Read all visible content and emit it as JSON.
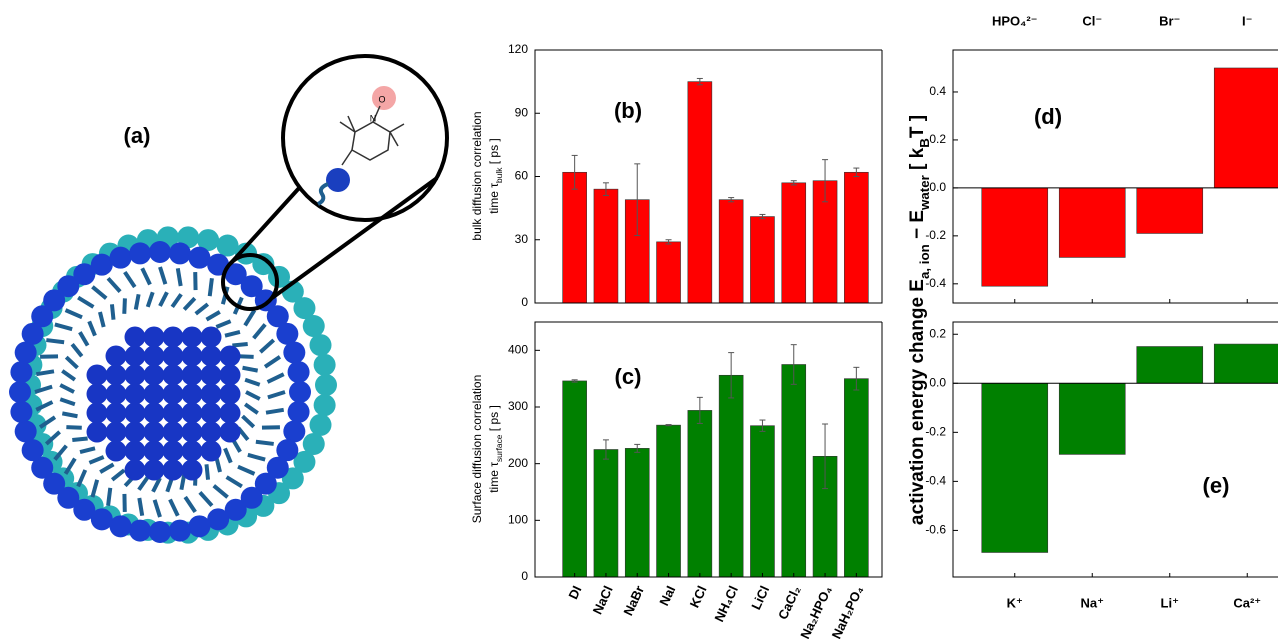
{
  "illustration": {
    "label": "(a)",
    "atoms": [
      "N",
      "O"
    ]
  },
  "chart_data": [
    {
      "type": "bar",
      "panel": "(b)",
      "y_label": [
        [
          "bulk diffusion correlation"
        ],
        [
          "time τ",
          "bulk",
          " [ ps ]"
        ]
      ],
      "values": [
        62,
        54,
        49,
        29,
        105,
        49,
        41,
        57,
        58,
        62
      ],
      "errors": [
        8,
        3,
        17,
        1,
        1.5,
        1,
        1,
        1,
        10,
        2
      ],
      "color": "#ff0000",
      "ylim": [
        0,
        120
      ],
      "yticks": [
        0,
        30,
        60,
        90,
        120
      ]
    },
    {
      "type": "bar",
      "panel": "(c)",
      "y_label": [
        [
          "Surface diffusion correlation"
        ],
        [
          "time τ",
          "surface",
          " [ ps ]"
        ]
      ],
      "categories": [
        "DI",
        "NaCl",
        "NaBr",
        "NaI",
        "KCl",
        "NH₄Cl",
        "LiCl",
        "CaCl₂",
        "Na₂HPO₄",
        "NaH₂PO₄"
      ],
      "values": [
        346,
        225,
        227,
        268,
        294,
        356,
        267,
        375,
        213,
        350
      ],
      "errors": [
        2,
        17,
        7,
        1,
        23,
        40,
        10,
        35,
        57,
        20
      ],
      "color": "#008000",
      "ylim": [
        0,
        450
      ],
      "yticks": [
        0,
        100,
        200,
        300,
        400
      ]
    },
    {
      "type": "bar",
      "panel": "(d)",
      "categories": [
        "HPO₄²⁻",
        "Cl⁻",
        "Br⁻",
        "I⁻"
      ],
      "values": [
        -0.41,
        -0.29,
        -0.19,
        0.5
      ],
      "color": "#ff0000",
      "ylim": [
        -0.48,
        0.575
      ],
      "yticks": [
        -0.4,
        -0.2,
        {
          "value": 0,
          "label": "0.0"
        },
        0.2,
        0.4
      ]
    },
    {
      "type": "bar",
      "panel": "(e)",
      "categories": [
        "K⁺",
        "Na⁺",
        "Li⁺",
        "Ca²⁺"
      ],
      "values": [
        -0.69,
        -0.29,
        0.15,
        0.16
      ],
      "color": "#008000",
      "ylim": [
        -0.79,
        0.25
      ],
      "yticks": [
        -0.6,
        -0.4,
        -0.2,
        {
          "value": 0,
          "label": "0.0"
        },
        0.2
      ]
    }
  ],
  "shared_y_label": [
    "activation energy change E",
    "a, ion",
    " − E",
    "water",
    " [ k",
    "B",
    "T ]"
  ]
}
